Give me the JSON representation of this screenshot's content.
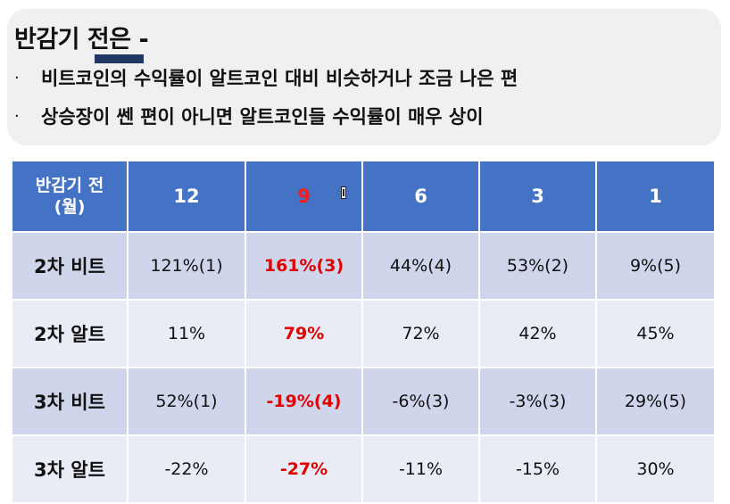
{
  "notes": {
    "title": "반감기 전은 -",
    "bullet_char": "·",
    "bullets": [
      "비트코인의 수익률이 알트코인 대비 비슷하거나 조금 나은 편",
      "상승장이 쎈 편이 아니면 알트코인들 수익률이 매우 상이"
    ]
  },
  "table": {
    "corner_line1": "반감기 전",
    "corner_line2": "(월)",
    "columns": [
      "12",
      "9",
      "6",
      "3",
      "1"
    ],
    "highlight_column_index": 1,
    "highlight_color": "#e00000",
    "header_color": "#4472c4",
    "rows": [
      {
        "label": "2차 비트",
        "cells": [
          "121%(1)",
          "161%(3)",
          "44%(4)",
          "53%(2)",
          "9%(5)"
        ]
      },
      {
        "label": "2차 알트",
        "cells": [
          "11%",
          "79%",
          "72%",
          "42%",
          "45%"
        ]
      },
      {
        "label": "3차 비트",
        "cells": [
          "52%(1)",
          "-19%(4)",
          "-6%(3)",
          "-3%(3)",
          "29%(5)"
        ]
      },
      {
        "label": "3차 알트",
        "cells": [
          "-22%",
          "-27%",
          "-11%",
          "-15%",
          "30%"
        ]
      }
    ]
  },
  "icons": {
    "cursor": "text-cursor-icon"
  }
}
